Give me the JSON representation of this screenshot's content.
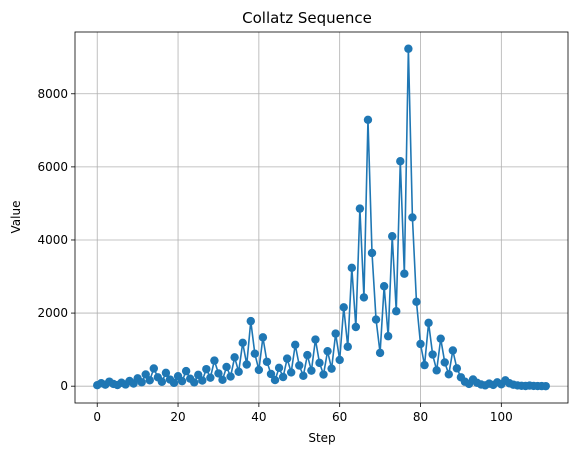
{
  "chart_data": {
    "type": "line",
    "title": "Collatz Sequence",
    "xlabel": "Step",
    "ylabel": "Value",
    "xlim": [
      -5.5,
      116.5
    ],
    "ylim": [
      -460,
      9690
    ],
    "xticks": [
      0,
      20,
      40,
      60,
      80,
      100
    ],
    "yticks": [
      0,
      2000,
      4000,
      6000,
      8000
    ],
    "grid": true,
    "marker": "circle",
    "series": [
      {
        "color": "#1f77b4",
        "x": [
          0,
          1,
          2,
          3,
          4,
          5,
          6,
          7,
          8,
          9,
          10,
          11,
          12,
          13,
          14,
          15,
          16,
          17,
          18,
          19,
          20,
          21,
          22,
          23,
          24,
          25,
          26,
          27,
          28,
          29,
          30,
          31,
          32,
          33,
          34,
          35,
          36,
          37,
          38,
          39,
          40,
          41,
          42,
          43,
          44,
          45,
          46,
          47,
          48,
          49,
          50,
          51,
          52,
          53,
          54,
          55,
          56,
          57,
          58,
          59,
          60,
          61,
          62,
          63,
          64,
          65,
          66,
          67,
          68,
          69,
          70,
          71,
          72,
          73,
          74,
          75,
          76,
          77,
          78,
          79,
          80,
          81,
          82,
          83,
          84,
          85,
          86,
          87,
          88,
          89,
          90,
          91,
          92,
          93,
          94,
          95,
          96,
          97,
          98,
          99,
          100,
          101,
          102,
          103,
          104,
          105,
          106,
          107,
          108,
          109,
          110,
          111
        ],
        "values": [
          27,
          82,
          41,
          124,
          62,
          31,
          94,
          47,
          142,
          71,
          214,
          107,
          322,
          161,
          484,
          242,
          121,
          364,
          182,
          91,
          274,
          137,
          412,
          206,
          103,
          310,
          155,
          466,
          233,
          700,
          350,
          175,
          526,
          263,
          790,
          395,
          1186,
          593,
          1780,
          890,
          445,
          1336,
          668,
          334,
          167,
          502,
          251,
          754,
          377,
          1132,
          566,
          283,
          850,
          425,
          1276,
          638,
          319,
          958,
          479,
          1438,
          719,
          2158,
          1079,
          3238,
          1619,
          4858,
          2429,
          7288,
          3644,
          1822,
          911,
          2734,
          1367,
          4102,
          2051,
          6154,
          3077,
          9232,
          4616,
          2308,
          1154,
          577,
          1732,
          866,
          433,
          1300,
          650,
          325,
          976,
          488,
          244,
          122,
          61,
          184,
          92,
          46,
          23,
          70,
          35,
          106,
          53,
          160,
          80,
          40,
          20,
          10,
          5,
          16,
          8,
          4,
          2,
          1
        ]
      }
    ]
  }
}
